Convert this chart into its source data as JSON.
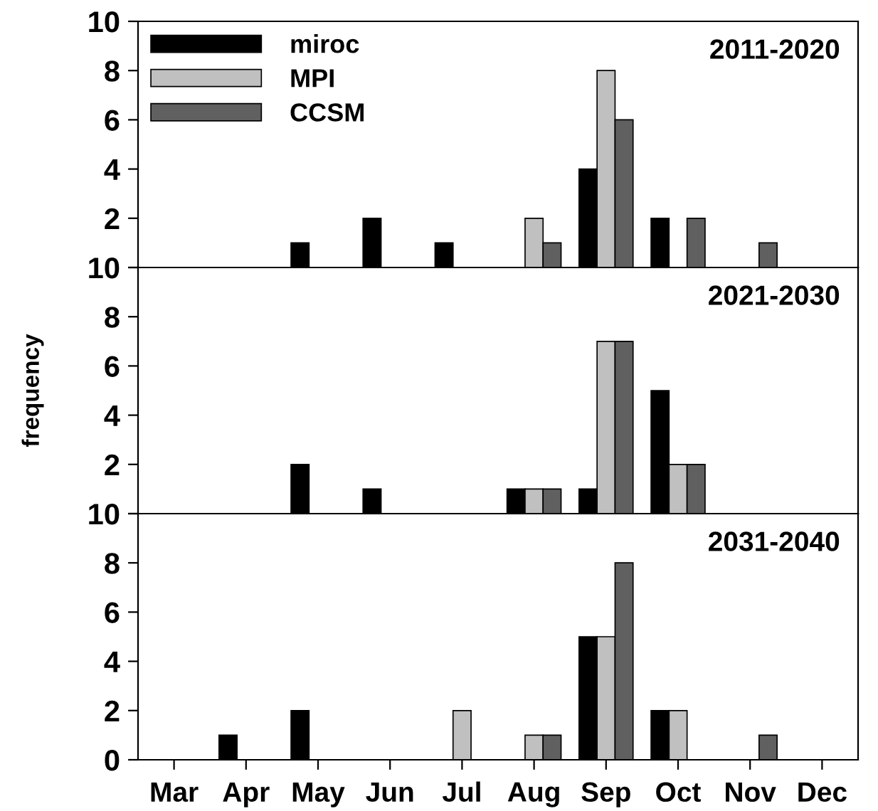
{
  "chart_data": [
    {
      "type": "bar",
      "title": "2011-2020",
      "categories": [
        null,
        null,
        null,
        null,
        null,
        null,
        null,
        null,
        null,
        null
      ],
      "series": [
        {
          "name": "miroc",
          "color": "#000000",
          "values": [
            null,
            null,
            1,
            2,
            1,
            null,
            4,
            2,
            null,
            null
          ]
        },
        {
          "name": "MPI",
          "color": "#c0c0c0",
          "values": [
            null,
            null,
            null,
            null,
            null,
            2,
            8,
            null,
            null,
            null
          ]
        },
        {
          "name": "CCSM",
          "color": "#606060",
          "values": [
            null,
            null,
            null,
            null,
            null,
            1,
            6,
            2,
            1,
            null
          ]
        }
      ],
      "ylim": [
        0,
        10
      ],
      "yticks": [
        {
          "value": 0,
          "label": null
        },
        2,
        4,
        6,
        8,
        10
      ],
      "legend": "top left"
    },
    {
      "type": "bar",
      "title": "2021-2030",
      "ylabel": "frequency",
      "categories": [
        null,
        null,
        null,
        null,
        null,
        null,
        null,
        null,
        null,
        null
      ],
      "series": [
        {
          "color": "#000000",
          "values": [
            null,
            null,
            2,
            1,
            null,
            1,
            1,
            5,
            null,
            null
          ]
        },
        {
          "color": "#c0c0c0",
          "values": [
            null,
            null,
            null,
            null,
            null,
            1,
            7,
            2,
            null,
            null
          ]
        },
        {
          "color": "#606060",
          "values": [
            null,
            null,
            null,
            null,
            null,
            1,
            7,
            2,
            null,
            null
          ]
        }
      ],
      "ylim": [
        0,
        10
      ],
      "yticks": [
        {
          "value": 0,
          "label": null
        },
        2,
        4,
        6,
        8,
        10
      ]
    },
    {
      "type": "bar",
      "title": "2031-2040",
      "categories": [
        "Mar",
        "Apr",
        "May",
        "Jun",
        "Jul",
        "Aug",
        "Sep",
        "Oct",
        "Nov",
        "Dec"
      ],
      "series": [
        {
          "color": "#000000",
          "values": [
            null,
            1,
            2,
            null,
            null,
            null,
            5,
            2,
            null,
            null
          ]
        },
        {
          "color": "#c0c0c0",
          "values": [
            null,
            null,
            null,
            null,
            2,
            1,
            5,
            2,
            null,
            null
          ]
        },
        {
          "color": "#606060",
          "values": [
            null,
            null,
            null,
            null,
            null,
            1,
            8,
            null,
            1,
            null
          ]
        }
      ],
      "ylim": [
        0,
        10
      ],
      "yticks": [
        0,
        2,
        4,
        6,
        8,
        10
      ]
    }
  ]
}
